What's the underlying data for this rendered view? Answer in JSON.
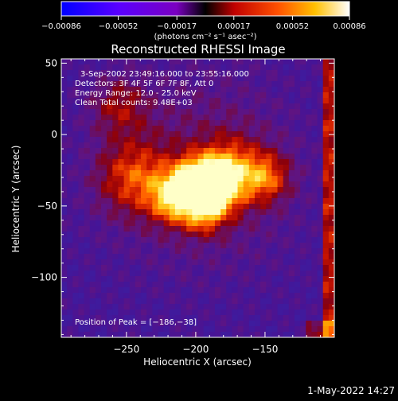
{
  "chart_data": {
    "type": "heatmap",
    "title": "Reconstructed RHESSI Image",
    "xlabel": "Heliocentric X (arcsec)",
    "ylabel": "Heliocentric Y (arcsec)",
    "xlim": [
      -297,
      -100
    ],
    "ylim": [
      -142,
      53
    ],
    "x_ticks": [
      -250,
      -200,
      -150
    ],
    "x_tick_labels": [
      "−250",
      "−200",
      "−150"
    ],
    "y_ticks": [
      50,
      0,
      -50,
      -100
    ],
    "y_tick_labels": [
      "50",
      "0",
      "−50",
      "−100"
    ],
    "colorbar": {
      "ticks": [
        -0.00086,
        -0.00052,
        -0.00017,
        0.00017,
        0.00052,
        0.00086
      ],
      "tick_labels": [
        "−0.00086",
        "−0.00052",
        "−0.00017",
        "0.00017",
        "0.00052",
        "0.00086"
      ],
      "unit_label": "(photons cm⁻² s⁻¹ asec⁻²)",
      "colormap": [
        "#0000ff",
        "#8000ff",
        "#000000",
        "#ff0000",
        "#ffa000",
        "#ffffff"
      ]
    },
    "annotations": [
      "3-Sep-2002 23:49:16.000 to 23:55:16.000",
      "Detectors: 3F 4F 5F 6F 7F 8F, Att 0",
      "Energy Range: 12.0 - 25.0 keV",
      "Clean     Total counts: 9.48E+03"
    ],
    "peak_label": "Position of Peak = [−186,−38]",
    "peak_position": [
      -186,
      -38
    ]
  },
  "footer": {
    "timestamp": "1-May-2022 14:27"
  }
}
